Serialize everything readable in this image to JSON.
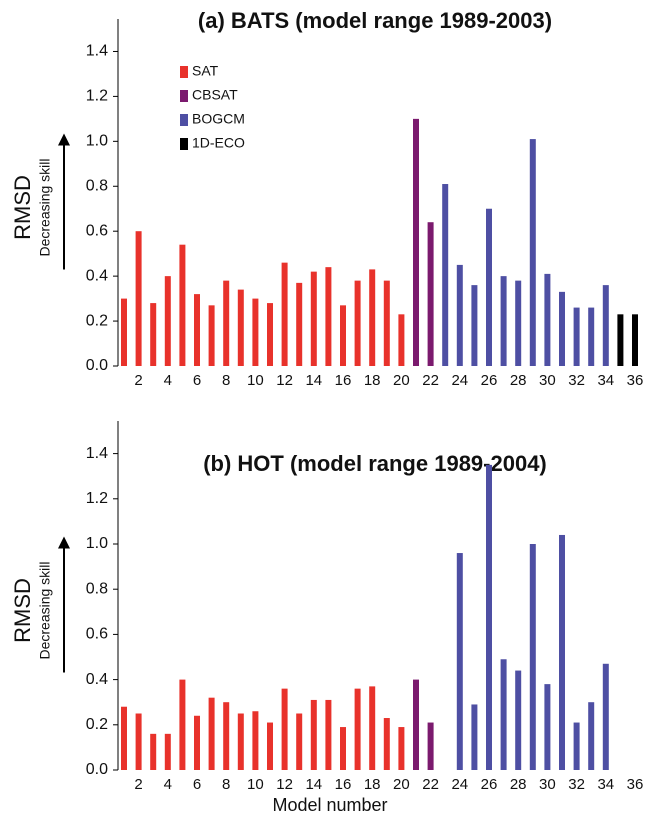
{
  "chart_data": [
    {
      "type": "bar",
      "title": "(a) BATS (model range 1989-2003)",
      "y_label": "RMSD",
      "annotation": "Decreasing skill",
      "legend": true,
      "categories": [
        null,
        2,
        null,
        4,
        null,
        6,
        null,
        8,
        null,
        10,
        null,
        12,
        null,
        14,
        null,
        16,
        null,
        18,
        null,
        20,
        null,
        22,
        null,
        24,
        null,
        26,
        null,
        28,
        null,
        30,
        null,
        32,
        null,
        34,
        null,
        36
      ],
      "ylim": [
        0,
        1.5
      ],
      "yticks": [
        {
          "value": 0,
          "label": "0.0"
        },
        {
          "value": 0.2,
          "label": "0.2"
        },
        {
          "value": 0.4,
          "label": "0.4"
        },
        {
          "value": 0.6,
          "label": "0.6"
        },
        {
          "value": 0.8,
          "label": "0.8"
        },
        {
          "value": 1,
          "label": "1.0"
        },
        {
          "value": 1.2,
          "label": "1.2"
        },
        {
          "value": 1.4,
          "label": "1.4"
        }
      ],
      "series": [
        {
          "name": "SAT",
          "color": "#e8322b",
          "values": [
            0.3,
            0.6,
            0.28,
            0.4,
            0.54,
            0.32,
            0.27,
            0.38,
            0.34,
            0.3,
            0.28,
            0.46,
            0.37,
            0.42,
            0.44,
            0.27,
            0.38,
            0.43,
            0.38,
            0.23,
            null,
            null,
            null,
            null,
            null,
            null,
            null,
            null,
            null,
            null,
            null,
            null,
            null,
            null,
            null,
            null
          ]
        },
        {
          "name": "CBSAT",
          "color": "#7b1a6e",
          "values": [
            null,
            null,
            null,
            null,
            null,
            null,
            null,
            null,
            null,
            null,
            null,
            null,
            null,
            null,
            null,
            null,
            null,
            null,
            null,
            null,
            1.1,
            0.64,
            null,
            null,
            null,
            null,
            null,
            null,
            null,
            null,
            null,
            null,
            null,
            null,
            null,
            null
          ]
        },
        {
          "name": "BOGCM",
          "color": "#4e4fa3",
          "values": [
            null,
            null,
            null,
            null,
            null,
            null,
            null,
            null,
            null,
            null,
            null,
            null,
            null,
            null,
            null,
            null,
            null,
            null,
            null,
            null,
            null,
            null,
            0.81,
            0.45,
            0.36,
            0.7,
            0.4,
            0.38,
            1.01,
            0.41,
            0.33,
            0.26,
            0.26,
            0.36,
            null,
            null
          ]
        },
        {
          "name": "1D-ECO",
          "color": "#000000",
          "values": [
            null,
            null,
            null,
            null,
            null,
            null,
            null,
            null,
            null,
            null,
            null,
            null,
            null,
            null,
            null,
            null,
            null,
            null,
            null,
            null,
            null,
            null,
            null,
            null,
            null,
            null,
            null,
            null,
            null,
            null,
            null,
            null,
            null,
            null,
            0.23,
            0.23
          ]
        }
      ]
    },
    {
      "type": "bar",
      "title": "(b) HOT (model range 1989-2004)",
      "y_label": "RMSD",
      "annotation": "Decreasing skill",
      "x_label": "Model number",
      "legend": false,
      "categories": [
        null,
        2,
        null,
        4,
        null,
        6,
        null,
        8,
        null,
        10,
        null,
        12,
        null,
        14,
        null,
        16,
        null,
        18,
        null,
        20,
        null,
        22,
        null,
        24,
        null,
        26,
        null,
        28,
        null,
        30,
        null,
        32,
        null,
        34,
        null,
        36
      ],
      "ylim": [
        0,
        1.5
      ],
      "yticks": [
        {
          "value": 0,
          "label": "0.0"
        },
        {
          "value": 0.2,
          "label": "0.2"
        },
        {
          "value": 0.4,
          "label": "0.4"
        },
        {
          "value": 0.6,
          "label": "0.6"
        },
        {
          "value": 0.8,
          "label": "0.8"
        },
        {
          "value": 1,
          "label": "1.0"
        },
        {
          "value": 1.2,
          "label": "1.2"
        },
        {
          "value": 1.4,
          "label": "1.4"
        }
      ],
      "series": [
        {
          "color": "#e8322b",
          "values": [
            0.28,
            0.25,
            0.16,
            0.16,
            0.4,
            0.24,
            0.32,
            0.3,
            0.25,
            0.26,
            0.21,
            0.36,
            0.25,
            0.31,
            0.31,
            0.19,
            0.36,
            0.37,
            0.23,
            0.19,
            null,
            null,
            null,
            null,
            null,
            null,
            null,
            null,
            null,
            null,
            null,
            null,
            null,
            null,
            null,
            null
          ]
        },
        {
          "color": "#7b1a6e",
          "values": [
            null,
            null,
            null,
            null,
            null,
            null,
            null,
            null,
            null,
            null,
            null,
            null,
            null,
            null,
            null,
            null,
            null,
            null,
            null,
            null,
            0.4,
            0.21,
            null,
            null,
            null,
            null,
            null,
            null,
            null,
            null,
            null,
            null,
            null,
            null,
            null,
            null
          ]
        },
        {
          "color": "#4e4fa3",
          "values": [
            null,
            null,
            null,
            null,
            null,
            null,
            null,
            null,
            null,
            null,
            null,
            null,
            null,
            null,
            null,
            null,
            null,
            null,
            null,
            null,
            null,
            null,
            null,
            0.96,
            0.29,
            1.35,
            0.49,
            0.44,
            1.0,
            0.38,
            1.04,
            0.21,
            0.3,
            0.47,
            null,
            null
          ]
        }
      ]
    }
  ]
}
